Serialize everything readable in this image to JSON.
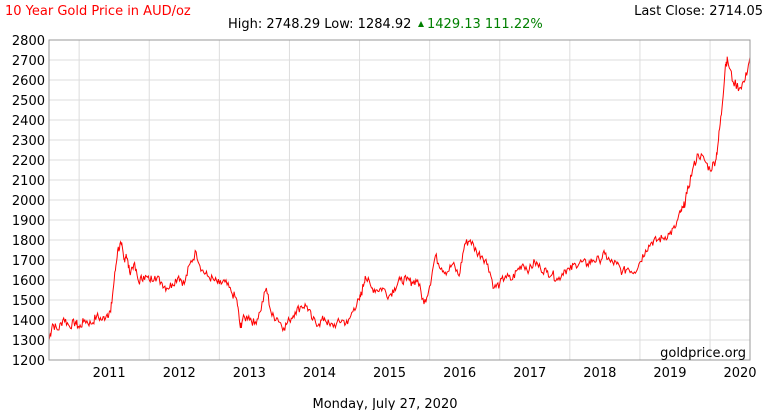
{
  "header": {
    "title": "10 Year Gold Price in AUD/oz",
    "last_close": "Last Close: 2714.05",
    "high_low": "High: 2748.29 Low: 1284.92",
    "change": "1429.13 111.22%"
  },
  "footer": {
    "date": "Monday, July 27, 2020",
    "watermark": "goldprice.org"
  },
  "colors": {
    "line": "#ff0000",
    "title": "#ff0000",
    "change": "#008000",
    "grid": "#dddddd",
    "border": "#999999"
  },
  "chart_data": {
    "type": "line",
    "title": "10 Year Gold Price in AUD/oz",
    "xlabel": "",
    "ylabel": "",
    "ylim": [
      1200,
      2800
    ],
    "xlim": [
      2010.57,
      2020.57
    ],
    "grid": true,
    "yticks": [
      "1200",
      "1300",
      "1400",
      "1500",
      "1600",
      "1700",
      "1800",
      "1900",
      "2000",
      "2100",
      "2200",
      "2300",
      "2400",
      "2500",
      "2600",
      "2700",
      "2800"
    ],
    "xticks": [
      "2011",
      "2012",
      "2013",
      "2014",
      "2015",
      "2016",
      "2017",
      "2018",
      "2019",
      "2020"
    ],
    "series": [
      {
        "x": [
          2010.57,
          2010.62,
          2010.7,
          2010.78,
          2010.86,
          2010.95,
          2011.0,
          2011.08,
          2011.17,
          2011.25,
          2011.33,
          2011.4,
          2011.45,
          2011.5,
          2011.55,
          2011.6,
          2011.64,
          2011.67,
          2011.72,
          2011.78,
          2011.85,
          2011.92,
          2012.0,
          2012.08,
          2012.17,
          2012.25,
          2012.33,
          2012.42,
          2012.5,
          2012.58,
          2012.67,
          2012.75,
          2012.83,
          2012.92,
          2013.0,
          2013.08,
          2013.17,
          2013.25,
          2013.3,
          2013.33,
          2013.42,
          2013.5,
          2013.58,
          2013.67,
          2013.75,
          2013.83,
          2013.92,
          2014.0,
          2014.08,
          2014.17,
          2014.25,
          2014.33,
          2014.42,
          2014.5,
          2014.58,
          2014.67,
          2014.75,
          2014.83,
          2014.92,
          2015.0,
          2015.04,
          2015.08,
          2015.17,
          2015.25,
          2015.33,
          2015.42,
          2015.5,
          2015.58,
          2015.67,
          2015.75,
          2015.83,
          2015.92,
          2016.0,
          2016.08,
          2016.17,
          2016.25,
          2016.33,
          2016.42,
          2016.5,
          2016.58,
          2016.67,
          2016.75,
          2016.83,
          2016.92,
          2017.0,
          2017.08,
          2017.17,
          2017.25,
          2017.33,
          2017.42,
          2017.5,
          2017.58,
          2017.67,
          2017.75,
          2017.83,
          2017.92,
          2018.0,
          2018.08,
          2018.17,
          2018.25,
          2018.33,
          2018.42,
          2018.5,
          2018.58,
          2018.67,
          2018.75,
          2018.83,
          2018.92,
          2019.0,
          2019.08,
          2019.17,
          2019.25,
          2019.33,
          2019.42,
          2019.5,
          2019.58,
          2019.62,
          2019.67,
          2019.75,
          2019.83,
          2019.92,
          2020.0,
          2020.08,
          2020.12,
          2020.17,
          2020.22,
          2020.25,
          2020.33,
          2020.42,
          2020.5,
          2020.57
        ],
        "values": [
          1300,
          1380,
          1350,
          1410,
          1370,
          1390,
          1360,
          1400,
          1380,
          1420,
          1400,
          1430,
          1440,
          1600,
          1750,
          1780,
          1700,
          1730,
          1640,
          1680,
          1590,
          1620,
          1600,
          1620,
          1590,
          1560,
          1580,
          1620,
          1580,
          1680,
          1740,
          1650,
          1620,
          1600,
          1580,
          1590,
          1540,
          1500,
          1360,
          1400,
          1420,
          1380,
          1440,
          1560,
          1420,
          1410,
          1360,
          1400,
          1440,
          1470,
          1470,
          1400,
          1380,
          1410,
          1370,
          1380,
          1400,
          1380,
          1460,
          1500,
          1550,
          1620,
          1560,
          1550,
          1560,
          1520,
          1560,
          1600,
          1600,
          1590,
          1600,
          1480,
          1570,
          1720,
          1660,
          1640,
          1680,
          1620,
          1780,
          1800,
          1740,
          1720,
          1680,
          1560,
          1580,
          1620,
          1600,
          1650,
          1680,
          1650,
          1690,
          1660,
          1640,
          1630,
          1600,
          1650,
          1650,
          1680,
          1690,
          1680,
          1700,
          1700,
          1730,
          1690,
          1680,
          1640,
          1660,
          1640,
          1690,
          1750,
          1790,
          1800,
          1810,
          1830,
          1860,
          1940,
          1960,
          2030,
          2150,
          2230,
          2200,
          2150,
          2200,
          2300,
          2460,
          2680,
          2700,
          2590,
          2560,
          2600,
          2714
        ]
      }
    ]
  }
}
